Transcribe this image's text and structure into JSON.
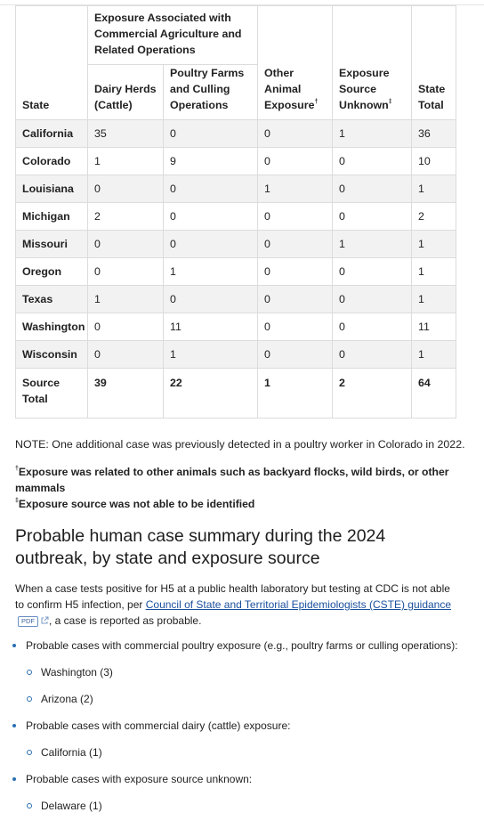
{
  "table": {
    "group_header": "Exposure Associated with Commercial Agriculture and Related Operations",
    "columns": [
      {
        "label": "State"
      },
      {
        "label": "Dairy Herds (Cattle)"
      },
      {
        "label": "Poultry Farms and Culling Operations"
      },
      {
        "label": "Other Animal Exposure",
        "mark": "†"
      },
      {
        "label": "Exposure Source Unknown",
        "mark": "‡"
      },
      {
        "label": "State Total"
      }
    ],
    "rows": [
      [
        "California",
        35,
        0,
        0,
        1,
        36
      ],
      [
        "Colorado",
        1,
        9,
        0,
        0,
        10
      ],
      [
        "Louisiana",
        0,
        0,
        1,
        0,
        1
      ],
      [
        "Michigan",
        2,
        0,
        0,
        0,
        2
      ],
      [
        "Missouri",
        0,
        0,
        0,
        1,
        1
      ],
      [
        "Oregon",
        0,
        1,
        0,
        0,
        1
      ],
      [
        "Texas",
        1,
        0,
        0,
        0,
        1
      ],
      [
        "Washington",
        0,
        11,
        0,
        0,
        11
      ],
      [
        "Wisconsin",
        0,
        1,
        0,
        0,
        1
      ]
    ],
    "total": [
      "Source Total",
      39,
      22,
      1,
      2,
      64
    ]
  },
  "notes": {
    "note": "NOTE: One additional case was previously detected in a poultry worker in Colorado in 2022.",
    "footnotes": [
      {
        "mark": "†",
        "text": "Exposure was related to other animals such as backyard flocks, wild birds, or other mammals"
      },
      {
        "mark": "‡",
        "text": "Exposure source was not able to be identified"
      }
    ]
  },
  "section": {
    "heading": "Probable human case summary during the 2024 outbreak, by state and exposure source",
    "intro": {
      "before": "When a case tests positive for H5 at a public health laboratory but testing at CDC is not able to confirm H5 infection, per ",
      "link": "Council of State and Territorial Epidemiologists (CSTE) guidance",
      "badge": "PDF",
      "after": ", a case is reported as probable."
    },
    "list": [
      {
        "text": "Probable cases with commercial poultry exposure (e.g., poultry farms or culling operations):",
        "items": [
          "Washington (3)",
          "Arizona (2)"
        ]
      },
      {
        "text": "Probable cases with commercial dairy (cattle) exposure:",
        "items": [
          "California (1)"
        ]
      },
      {
        "text": "Probable cases with exposure source unknown:",
        "items": [
          "Delaware (1)"
        ]
      }
    ]
  }
}
